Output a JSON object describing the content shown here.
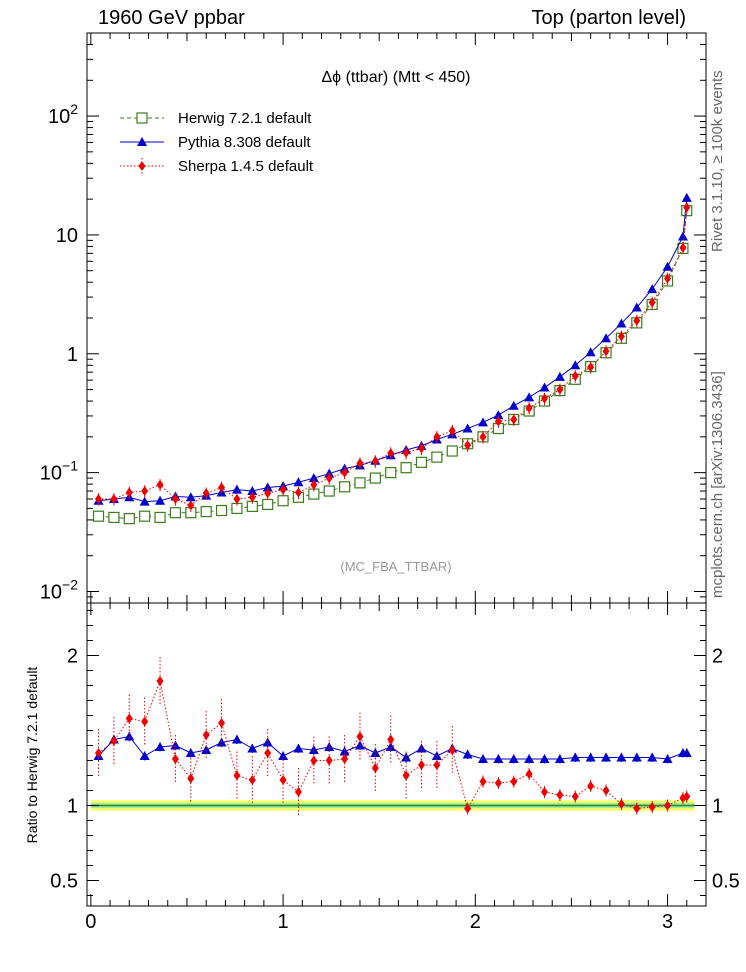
{
  "header": {
    "left": "1960 GeV ppbar",
    "right": "Top (parton level)"
  },
  "side_labels": {
    "top": "Rivet 3.1.10, ≥ 100k events",
    "bottom": "mcplots.cern.ch [arXiv:1306.3436]"
  },
  "watermark": "(MC_FBA_TTBAR)",
  "ratio_ylabel": "Ratio to Herwig 7.2.1 default",
  "chart_data": [
    {
      "type": "line",
      "title": "Δϕ (ttbar) (Mtt < 450)",
      "xlabel": "",
      "ylabel": "",
      "xlim": [
        -0.02,
        3.2
      ],
      "ylim": [
        0.008,
        500
      ],
      "yscale": "log",
      "grid": false,
      "legend": "top-left",
      "x_ticks": [
        "0",
        "1",
        "2",
        "3"
      ],
      "x_tick_values": [
        0,
        1,
        2,
        3
      ],
      "y_ticks": [
        {
          "value": 0.01,
          "label": "10",
          "exp": "−2"
        },
        {
          "value": 0.1,
          "label": "10",
          "exp": "−1"
        },
        {
          "value": 1,
          "label": "1",
          "exp": ""
        },
        {
          "value": 10,
          "label": "10",
          "exp": ""
        },
        {
          "value": 100,
          "label": "10",
          "exp": "2"
        }
      ],
      "x": [
        0.04,
        0.12,
        0.2,
        0.28,
        0.36,
        0.44,
        0.52,
        0.6,
        0.68,
        0.76,
        0.84,
        0.92,
        1.0,
        1.08,
        1.16,
        1.24,
        1.32,
        1.4,
        1.48,
        1.56,
        1.64,
        1.72,
        1.8,
        1.88,
        1.96,
        2.04,
        2.12,
        2.2,
        2.28,
        2.36,
        2.44,
        2.52,
        2.6,
        2.68,
        2.76,
        2.84,
        2.92,
        3.0,
        3.08
      ],
      "series": [
        {
          "name": "Herwig 7.2.1 default",
          "color": "#3a7d1c",
          "marker": "open-square",
          "line": "dashed",
          "values": [
            0.043,
            0.042,
            0.041,
            0.043,
            0.042,
            0.046,
            0.046,
            0.047,
            0.048,
            0.05,
            0.052,
            0.054,
            0.058,
            0.062,
            0.066,
            0.07,
            0.076,
            0.082,
            0.09,
            0.1,
            0.11,
            0.122,
            0.135,
            0.152,
            0.175,
            0.2,
            0.235,
            0.28,
            0.33,
            0.4,
            0.49,
            0.61,
            0.78,
            1.02,
            1.35,
            1.82,
            2.6,
            4.1,
            7.7
          ]
        },
        {
          "name": "Pythia 8.308 default",
          "color": "#0000cc",
          "marker": "filled-triangle",
          "line": "solid",
          "values": [
            0.058,
            0.06,
            0.062,
            0.057,
            0.058,
            0.063,
            0.062,
            0.064,
            0.068,
            0.072,
            0.07,
            0.075,
            0.077,
            0.083,
            0.09,
            0.098,
            0.108,
            0.115,
            0.126,
            0.14,
            0.155,
            0.168,
            0.19,
            0.21,
            0.235,
            0.265,
            0.305,
            0.365,
            0.43,
            0.52,
            0.64,
            0.8,
            1.03,
            1.35,
            1.8,
            2.45,
            3.5,
            5.4,
            9.7
          ]
        },
        {
          "name": "Sherpa 1.4.5 default",
          "color": "#ee0000",
          "marker": "filled-diamond",
          "line": "dotted",
          "values": [
            0.06,
            0.06,
            0.068,
            0.07,
            0.079,
            0.06,
            0.053,
            0.067,
            0.075,
            0.06,
            0.062,
            0.067,
            0.072,
            0.068,
            0.079,
            0.09,
            0.1,
            0.12,
            0.125,
            0.146,
            0.147,
            0.16,
            0.2,
            0.225,
            0.17,
            0.2,
            0.27,
            0.28,
            0.35,
            0.42,
            0.5,
            0.65,
            0.77,
            1.05,
            1.4,
            1.9,
            2.7,
            4.3,
            7.8
          ]
        }
      ],
      "final_bin": {
        "x": 3.1,
        "herwig": 16,
        "pythia": 20.5,
        "sherpa": 17
      }
    },
    {
      "type": "line",
      "title": "",
      "xlabel": "",
      "ylabel": "Ratio to Herwig 7.2.1 default",
      "xlim": [
        -0.02,
        3.2
      ],
      "ylim": [
        0.33,
        2.35
      ],
      "grid": false,
      "y_ticks": [
        0.5,
        1,
        2
      ],
      "y_tick_labels": [
        "0.5",
        "1",
        "2"
      ],
      "x_ticks": [
        "0",
        "1",
        "2",
        "3"
      ],
      "x_tick_values": [
        0,
        1,
        2,
        3
      ],
      "x": [
        0.04,
        0.12,
        0.2,
        0.28,
        0.36,
        0.44,
        0.52,
        0.6,
        0.68,
        0.76,
        0.84,
        0.92,
        1.0,
        1.08,
        1.16,
        1.24,
        1.32,
        1.4,
        1.48,
        1.56,
        1.64,
        1.72,
        1.8,
        1.88,
        1.96,
        2.04,
        2.12,
        2.2,
        2.28,
        2.36,
        2.44,
        2.52,
        2.6,
        2.68,
        2.76,
        2.84,
        2.92,
        3.0,
        3.08
      ],
      "series": [
        {
          "name": "Pythia 8.308 default",
          "color": "#0000cc",
          "values": [
            1.33,
            1.44,
            1.46,
            1.33,
            1.39,
            1.4,
            1.35,
            1.37,
            1.42,
            1.44,
            1.38,
            1.42,
            1.33,
            1.38,
            1.37,
            1.39,
            1.36,
            1.4,
            1.35,
            1.39,
            1.32,
            1.38,
            1.33,
            1.38,
            1.34,
            1.31,
            1.31,
            1.31,
            1.31,
            1.31,
            1.31,
            1.32,
            1.32,
            1.32,
            1.32,
            1.32,
            1.32,
            1.31,
            1.35
          ]
        },
        {
          "name": "Sherpa 1.4.5 default",
          "color": "#ee0000",
          "values": [
            1.35,
            1.43,
            1.58,
            1.56,
            1.83,
            1.31,
            1.18,
            1.47,
            1.55,
            1.2,
            1.17,
            1.35,
            1.17,
            1.09,
            1.3,
            1.3,
            1.31,
            1.46,
            1.25,
            1.44,
            1.2,
            1.27,
            1.27,
            1.37,
            0.98,
            1.16,
            1.15,
            1.16,
            1.21,
            1.09,
            1.07,
            1.06,
            1.13,
            1.1,
            1.01,
            0.98,
            0.99,
            1.0,
            1.05
          ]
        }
      ],
      "final_bin": {
        "x": 3.1,
        "pythia": 1.35,
        "sherpa": 1.06
      }
    }
  ]
}
